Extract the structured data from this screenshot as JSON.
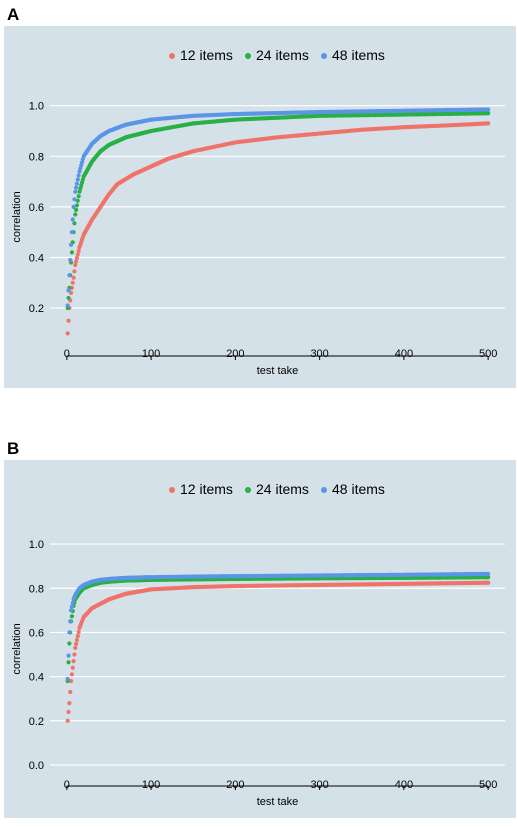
{
  "chart_data": [
    {
      "panel": "A",
      "type": "scatter",
      "xlabel": "test take",
      "ylabel": "correlation",
      "xlim": [
        -20,
        520
      ],
      "ylim": [
        0.05,
        1.07
      ],
      "xticks": [
        0,
        100,
        200,
        300,
        400,
        500
      ],
      "yticks": [
        0.2,
        0.4,
        0.6,
        0.8,
        1.0
      ],
      "ytick_labels": [
        "0.2",
        "0.4",
        "0.6",
        "0.8",
        "1.0"
      ],
      "legend_position": "top",
      "background": "#d4e1e8",
      "series": [
        {
          "name": "12 items",
          "color": "#f0736a",
          "x": [
            1,
            3,
            5,
            8,
            10,
            15,
            20,
            30,
            40,
            50,
            60,
            70,
            80,
            100,
            120,
            150,
            200,
            250,
            300,
            350,
            400,
            450,
            500
          ],
          "y": [
            0.1,
            0.2,
            0.26,
            0.32,
            0.37,
            0.44,
            0.49,
            0.55,
            0.6,
            0.65,
            0.69,
            0.71,
            0.73,
            0.76,
            0.79,
            0.82,
            0.855,
            0.875,
            0.89,
            0.905,
            0.915,
            0.922,
            0.93
          ]
        },
        {
          "name": "24 items",
          "color": "#28b045",
          "x": [
            1,
            3,
            5,
            8,
            10,
            15,
            20,
            30,
            40,
            50,
            70,
            100,
            150,
            200,
            300,
            400,
            500
          ],
          "y": [
            0.2,
            0.28,
            0.38,
            0.5,
            0.57,
            0.66,
            0.72,
            0.78,
            0.82,
            0.845,
            0.875,
            0.9,
            0.93,
            0.945,
            0.96,
            0.965,
            0.97
          ]
        },
        {
          "name": "48 items",
          "color": "#5b95e8",
          "x": [
            1,
            3,
            5,
            8,
            10,
            15,
            20,
            30,
            40,
            50,
            70,
            100,
            150,
            200,
            300,
            400,
            500
          ],
          "y": [
            0.21,
            0.33,
            0.45,
            0.6,
            0.66,
            0.74,
            0.8,
            0.85,
            0.88,
            0.9,
            0.925,
            0.945,
            0.96,
            0.967,
            0.975,
            0.98,
            0.985
          ]
        }
      ]
    },
    {
      "panel": "B",
      "type": "scatter",
      "xlabel": "test take",
      "ylabel": "correlation",
      "xlim": [
        -20,
        520
      ],
      "ylim": [
        -0.05,
        1.1
      ],
      "xticks": [
        0,
        100,
        200,
        300,
        400,
        500
      ],
      "yticks": [
        0.0,
        0.2,
        0.4,
        0.6,
        0.8,
        1.0
      ],
      "ytick_labels": [
        "0.0",
        "0.2",
        "0.4",
        "0.6",
        "0.8",
        "1.0"
      ],
      "legend_position": "top",
      "background": "#d4e1e8",
      "series": [
        {
          "name": "12 items",
          "color": "#f0736a",
          "x": [
            1,
            3,
            5,
            8,
            10,
            15,
            20,
            30,
            40,
            50,
            70,
            100,
            150,
            200,
            300,
            400,
            500
          ],
          "y": [
            0.2,
            0.28,
            0.38,
            0.47,
            0.53,
            0.62,
            0.67,
            0.71,
            0.73,
            0.75,
            0.775,
            0.795,
            0.805,
            0.81,
            0.815,
            0.82,
            0.825
          ]
        },
        {
          "name": "24 items",
          "color": "#28b045",
          "x": [
            1,
            3,
            5,
            8,
            10,
            15,
            20,
            30,
            40,
            50,
            70,
            100,
            150,
            200,
            300,
            400,
            500
          ],
          "y": [
            0.38,
            0.55,
            0.65,
            0.72,
            0.75,
            0.78,
            0.8,
            0.815,
            0.825,
            0.83,
            0.835,
            0.838,
            0.84,
            0.842,
            0.845,
            0.847,
            0.85
          ]
        },
        {
          "name": "48 items",
          "color": "#5b95e8",
          "x": [
            1,
            3,
            5,
            8,
            10,
            15,
            20,
            30,
            40,
            50,
            70,
            100,
            150,
            200,
            300,
            400,
            500
          ],
          "y": [
            0.39,
            0.6,
            0.7,
            0.75,
            0.77,
            0.8,
            0.815,
            0.83,
            0.838,
            0.842,
            0.847,
            0.85,
            0.853,
            0.855,
            0.858,
            0.861,
            0.865
          ]
        }
      ]
    }
  ]
}
